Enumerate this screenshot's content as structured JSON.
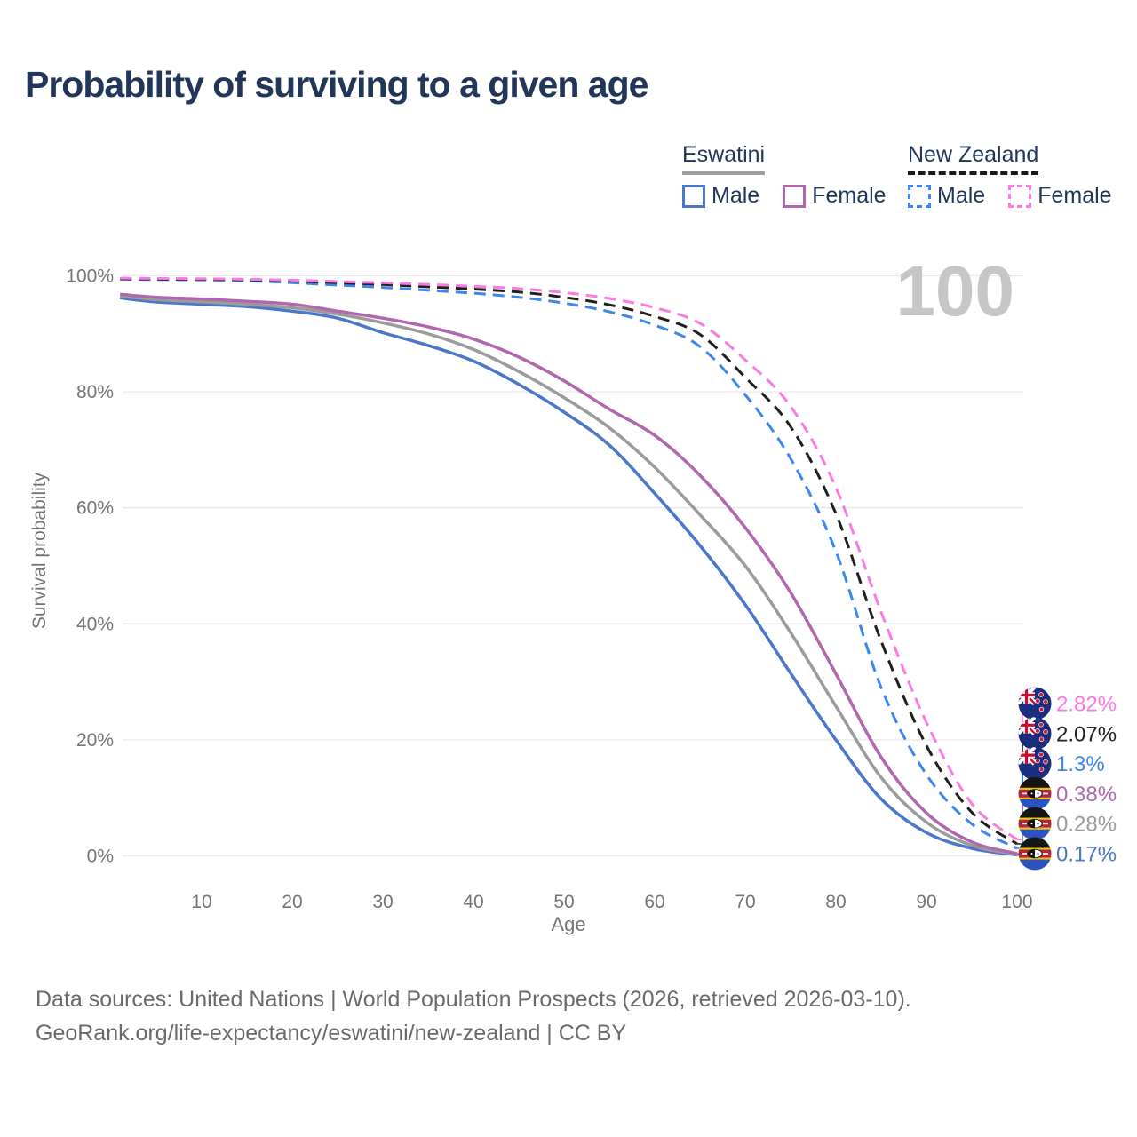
{
  "title": "Probability of surviving to a given age",
  "watermark_age": "100",
  "legend": {
    "groups": [
      {
        "label": "Eswatini",
        "underline_style": "solid",
        "underline_color": "#9e9e9e",
        "items": [
          {
            "label": "Male",
            "color": "#4a77c9",
            "line_style": "solid"
          },
          {
            "label": "Female",
            "color": "#b167ae",
            "line_style": "solid"
          }
        ]
      },
      {
        "label": "New Zealand",
        "underline_style": "dashed",
        "underline_color": "#1a1a1a",
        "items": [
          {
            "label": "Male",
            "color": "#3d86f0",
            "line_style": "dashed"
          },
          {
            "label": "Female",
            "color": "#fb7ae1",
            "line_style": "dashed"
          }
        ]
      }
    ]
  },
  "footer": {
    "line1": "Data sources: United Nations | World Population Prospects (2026, retrieved 2026-03-10).",
    "line2": "GeoRank.org/life-expectancy/eswatini/new-zealand | CC BY"
  },
  "chart_data": {
    "type": "line",
    "title": "Probability of surviving to a given age",
    "xlabel": "Age",
    "ylabel": "Survival probability",
    "xlim": [
      1,
      100
    ],
    "ylim": [
      0,
      100
    ],
    "x_ticks": [
      10,
      20,
      30,
      40,
      50,
      60,
      70,
      80,
      90,
      100
    ],
    "y_ticks": [
      0,
      20,
      40,
      60,
      80,
      100
    ],
    "y_tick_suffix": "%",
    "grid": "horizontal",
    "legend_position": "top-right",
    "age_counter_watermark": "100",
    "ages": [
      1,
      5,
      10,
      15,
      20,
      25,
      30,
      35,
      40,
      45,
      50,
      55,
      60,
      65,
      70,
      75,
      80,
      85,
      90,
      95,
      100
    ],
    "series": [
      {
        "id": "eswatini-male",
        "name": "Eswatini Male",
        "flag": "eswatini",
        "color": "#4a77c9",
        "style": "solid",
        "end_label": "0.17%",
        "values": [
          96.2,
          95.5,
          95.1,
          94.7,
          93.9,
          92.7,
          90.2,
          88.0,
          85.3,
          81.3,
          76.5,
          70.8,
          62.5,
          53.5,
          43.3,
          31.5,
          20.0,
          9.8,
          4.0,
          1.3,
          0.17
        ]
      },
      {
        "id": "eswatini-combined",
        "name": "Eswatini (combined)",
        "flag": "eswatini",
        "color": "#9b9b9b",
        "style": "solid",
        "end_label": "0.28%",
        "values": [
          96.5,
          95.9,
          95.5,
          95.1,
          94.5,
          93.4,
          91.9,
          90.0,
          87.3,
          83.5,
          79.0,
          73.8,
          67.0,
          58.8,
          50.0,
          38.5,
          25.8,
          13.5,
          5.8,
          1.8,
          0.28
        ]
      },
      {
        "id": "eswatini-female",
        "name": "Eswatini Female",
        "flag": "eswatini",
        "color": "#b167ae",
        "style": "solid",
        "end_label": "0.38%",
        "values": [
          96.8,
          96.3,
          96.0,
          95.6,
          95.1,
          93.9,
          92.7,
          91.2,
          89.1,
          86.0,
          81.9,
          77.0,
          72.5,
          65.6,
          56.6,
          45.4,
          31.4,
          17.0,
          7.4,
          2.4,
          0.38
        ]
      },
      {
        "id": "nz-male",
        "name": "New Zealand Male",
        "flag": "nz",
        "color": "#3d86f0",
        "style": "dashed",
        "end_label": "1.3%",
        "values": [
          99.4,
          99.35,
          99.3,
          99.15,
          98.8,
          98.4,
          98.0,
          97.5,
          97.0,
          96.3,
          95.3,
          93.8,
          91.5,
          87.8,
          79.5,
          68.5,
          52.5,
          29.0,
          14.0,
          5.5,
          1.3
        ]
      },
      {
        "id": "nz-combined",
        "name": "New Zealand (combined)",
        "flag": "nz",
        "color": "#1f1f1f",
        "style": "dashed",
        "end_label": "2.07%",
        "values": [
          99.5,
          99.45,
          99.4,
          99.3,
          99.1,
          98.8,
          98.5,
          98.1,
          97.7,
          97.2,
          96.3,
          95.0,
          93.0,
          89.9,
          82.5,
          74.0,
          59.0,
          37.0,
          19.0,
          7.5,
          2.07
        ]
      },
      {
        "id": "nz-female",
        "name": "New Zealand Female",
        "flag": "nz",
        "color": "#fb7ae1",
        "style": "dashed",
        "end_label": "2.82%",
        "values": [
          99.6,
          99.55,
          99.5,
          99.4,
          99.25,
          99.0,
          98.8,
          98.5,
          98.2,
          97.8,
          97.1,
          96.1,
          94.5,
          91.8,
          85.5,
          77.5,
          63.5,
          42.0,
          23.0,
          9.0,
          2.82
        ]
      }
    ]
  }
}
